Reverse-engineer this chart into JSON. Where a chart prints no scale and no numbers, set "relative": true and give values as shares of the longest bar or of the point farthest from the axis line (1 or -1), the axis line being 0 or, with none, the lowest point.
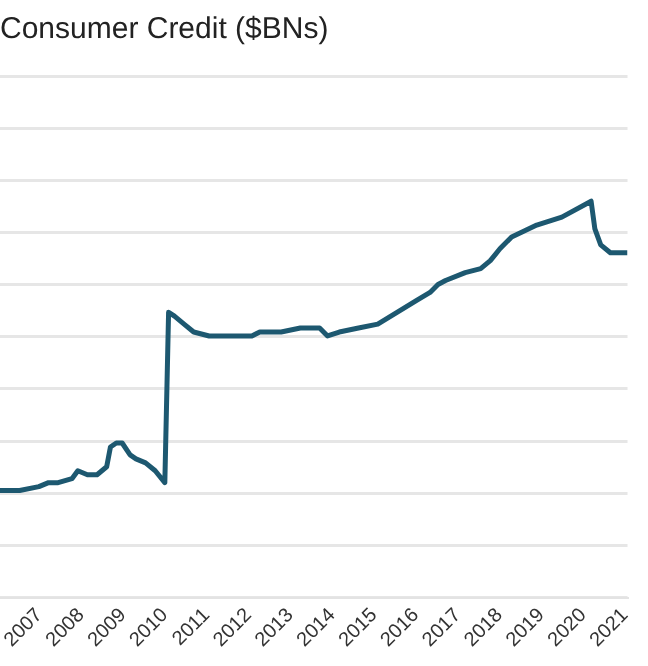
{
  "chart_data": {
    "type": "line",
    "title": "Consumer Credit ($BNs)",
    "relative": true,
    "grid": "y",
    "legend": false,
    "marker": "none",
    "line_style": "solid",
    "x": [
      2006.06,
      2006.53,
      2006.99,
      2007.22,
      2007.45,
      2007.78,
      2007.92,
      2008.15,
      2008.38,
      2008.61,
      2008.7,
      2008.84,
      2008.98,
      2009.17,
      2009.31,
      2009.54,
      2009.77,
      2010.0,
      2010.09,
      2010.23,
      2010.46,
      2010.69,
      2011.06,
      2011.62,
      2012.08,
      2012.27,
      2012.78,
      2013.24,
      2013.7,
      2013.89,
      2014.17,
      2014.63,
      2015.09,
      2015.56,
      2016.02,
      2016.34,
      2016.53,
      2016.71,
      2017.18,
      2017.55,
      2017.78,
      2018.01,
      2018.29,
      2018.89,
      2019.49,
      2020.19,
      2020.28,
      2020.42,
      2020.65,
      2021.06
    ],
    "xlim": [
      2006.06,
      2021.06
    ],
    "xticks": [
      2007,
      2008,
      2009,
      2010,
      2011,
      2012,
      2013,
      2014,
      2015,
      2016,
      2017,
      2018,
      2019,
      2020,
      2021
    ],
    "series": [
      {
        "color": "#1d5870",
        "values": [
          0.27,
          0.27,
          0.28,
          0.29,
          0.29,
          0.3,
          0.32,
          0.31,
          0.31,
          0.33,
          0.38,
          0.39,
          0.39,
          0.36,
          0.35,
          0.34,
          0.32,
          0.29,
          0.72,
          0.71,
          0.69,
          0.67,
          0.66,
          0.66,
          0.66,
          0.67,
          0.67,
          0.68,
          0.68,
          0.66,
          0.67,
          0.68,
          0.69,
          0.72,
          0.75,
          0.77,
          0.79,
          0.8,
          0.82,
          0.83,
          0.85,
          0.88,
          0.91,
          0.94,
          0.96,
          1,
          0.93,
          0.89,
          0.87,
          0.87
        ]
      }
    ]
  }
}
